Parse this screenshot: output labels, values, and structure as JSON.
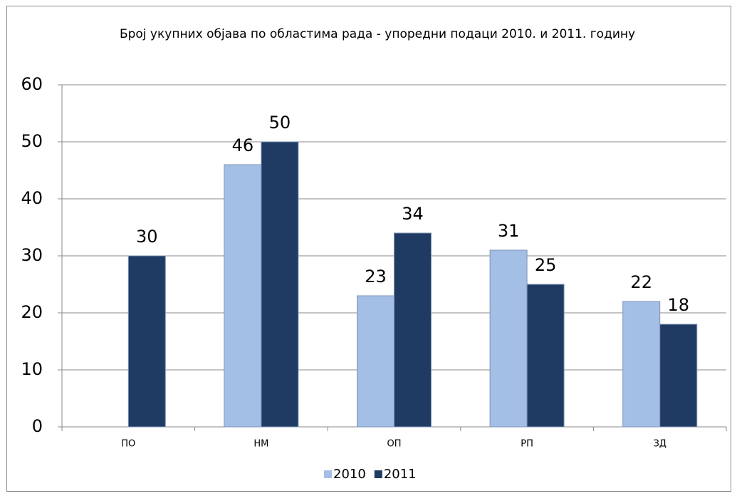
{
  "chart_data": {
    "type": "bar",
    "title": "Број укупних објава по областима рада - упоредни подаци 2010. и 2011. годину",
    "categories": [
      "ПО",
      "НМ",
      "ОП",
      "РП",
      "ЗД"
    ],
    "series": [
      {
        "name": "2010",
        "color": "#a4bfe5",
        "values": [
          null,
          46,
          23,
          31,
          22
        ]
      },
      {
        "name": "2011",
        "color": "#1f3a63",
        "values": [
          30,
          50,
          34,
          25,
          18
        ]
      }
    ],
    "ylim": [
      0,
      60
    ],
    "yticks": [
      0,
      10,
      20,
      30,
      40,
      50,
      60
    ],
    "grid": true,
    "legend": "bottom"
  }
}
